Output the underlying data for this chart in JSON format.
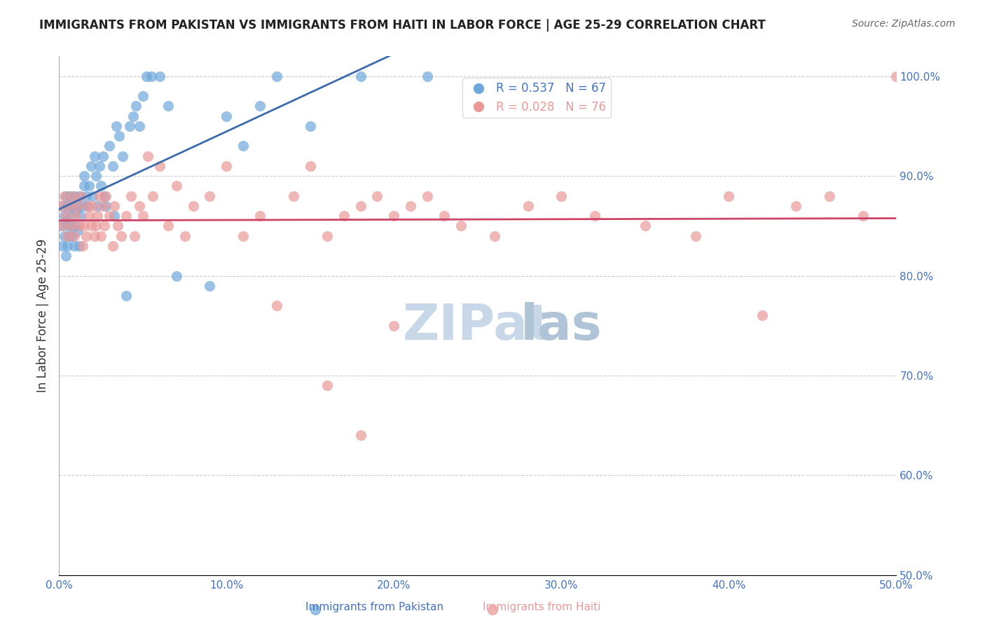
{
  "title": "IMMIGRANTS FROM PAKISTAN VS IMMIGRANTS FROM HAITI IN LABOR FORCE | AGE 25-29 CORRELATION CHART",
  "source": "Source: ZipAtlas.com",
  "xlabel": "",
  "ylabel": "In Labor Force | Age 25-29",
  "R_pakistan": 0.537,
  "N_pakistan": 67,
  "R_haiti": 0.028,
  "N_haiti": 76,
  "color_pakistan": "#6fa8dc",
  "color_haiti": "#ea9999",
  "line_color_pakistan": "#3c6aad",
  "line_color_haiti": "#cc4466",
  "watermark_color": "#c8d8e8",
  "title_color": "#222222",
  "axis_color": "#4472c4",
  "right_axis_color": "#4472c4",
  "xlim": [
    0.0,
    0.5
  ],
  "ylim": [
    0.5,
    1.02
  ],
  "x_ticks": [
    0.0,
    0.1,
    0.2,
    0.3,
    0.4,
    0.5
  ],
  "x_tick_labels": [
    "0.0%",
    "10.0%",
    "20.0%",
    "30.0%",
    "40.0%",
    "50.0%"
  ],
  "y_ticks_right": [
    0.5,
    0.6,
    0.7,
    0.8,
    0.9,
    1.0
  ],
  "y_tick_labels_right": [
    "50.0%",
    "60.0%",
    "70.0%",
    "80.0%",
    "90.0%",
    "100.0%"
  ],
  "pakistan_x": [
    0.001,
    0.002,
    0.002,
    0.003,
    0.003,
    0.004,
    0.004,
    0.004,
    0.005,
    0.005,
    0.005,
    0.006,
    0.006,
    0.007,
    0.007,
    0.008,
    0.008,
    0.009,
    0.009,
    0.01,
    0.01,
    0.011,
    0.011,
    0.012,
    0.012,
    0.013,
    0.014,
    0.015,
    0.015,
    0.016,
    0.017,
    0.018,
    0.019,
    0.02,
    0.021,
    0.022,
    0.023,
    0.024,
    0.025,
    0.026,
    0.027,
    0.028,
    0.03,
    0.032,
    0.033,
    0.034,
    0.036,
    0.038,
    0.04,
    0.042,
    0.044,
    0.046,
    0.048,
    0.05,
    0.052,
    0.055,
    0.06,
    0.065,
    0.07,
    0.09,
    0.1,
    0.11,
    0.12,
    0.13,
    0.15,
    0.18,
    0.22
  ],
  "pakistan_y": [
    0.85,
    0.87,
    0.83,
    0.86,
    0.84,
    0.855,
    0.88,
    0.82,
    0.87,
    0.85,
    0.83,
    0.88,
    0.84,
    0.86,
    0.85,
    0.87,
    0.84,
    0.88,
    0.83,
    0.865,
    0.85,
    0.87,
    0.845,
    0.83,
    0.88,
    0.86,
    0.87,
    0.9,
    0.89,
    0.88,
    0.87,
    0.89,
    0.91,
    0.88,
    0.92,
    0.9,
    0.87,
    0.91,
    0.89,
    0.92,
    0.88,
    0.87,
    0.93,
    0.91,
    0.86,
    0.95,
    0.94,
    0.92,
    0.78,
    0.95,
    0.96,
    0.97,
    0.95,
    0.98,
    1.0,
    1.0,
    1.0,
    0.97,
    0.8,
    0.79,
    0.96,
    0.93,
    0.97,
    1.0,
    0.95,
    1.0,
    1.0
  ],
  "haiti_x": [
    0.001,
    0.002,
    0.003,
    0.004,
    0.005,
    0.006,
    0.007,
    0.008,
    0.009,
    0.01,
    0.011,
    0.012,
    0.013,
    0.014,
    0.015,
    0.016,
    0.017,
    0.018,
    0.019,
    0.02,
    0.021,
    0.022,
    0.023,
    0.024,
    0.025,
    0.026,
    0.027,
    0.028,
    0.03,
    0.032,
    0.033,
    0.035,
    0.037,
    0.04,
    0.043,
    0.045,
    0.048,
    0.05,
    0.053,
    0.056,
    0.06,
    0.065,
    0.07,
    0.075,
    0.08,
    0.09,
    0.1,
    0.11,
    0.12,
    0.13,
    0.14,
    0.15,
    0.16,
    0.17,
    0.18,
    0.19,
    0.2,
    0.21,
    0.22,
    0.23,
    0.24,
    0.26,
    0.28,
    0.3,
    0.32,
    0.35,
    0.38,
    0.4,
    0.42,
    0.44,
    0.46,
    0.48,
    0.5,
    0.16,
    0.18,
    0.2
  ],
  "haiti_y": [
    0.87,
    0.85,
    0.88,
    0.86,
    0.84,
    0.87,
    0.85,
    0.88,
    0.84,
    0.86,
    0.87,
    0.85,
    0.88,
    0.83,
    0.85,
    0.84,
    0.87,
    0.86,
    0.85,
    0.87,
    0.84,
    0.85,
    0.86,
    0.88,
    0.84,
    0.87,
    0.85,
    0.88,
    0.86,
    0.83,
    0.87,
    0.85,
    0.84,
    0.86,
    0.88,
    0.84,
    0.87,
    0.86,
    0.92,
    0.88,
    0.91,
    0.85,
    0.89,
    0.84,
    0.87,
    0.88,
    0.91,
    0.84,
    0.86,
    0.77,
    0.88,
    0.91,
    0.84,
    0.86,
    0.87,
    0.88,
    0.86,
    0.87,
    0.88,
    0.86,
    0.85,
    0.84,
    0.87,
    0.88,
    0.86,
    0.85,
    0.84,
    0.88,
    0.76,
    0.87,
    0.88,
    0.86,
    1.0,
    0.69,
    0.64,
    0.75
  ]
}
